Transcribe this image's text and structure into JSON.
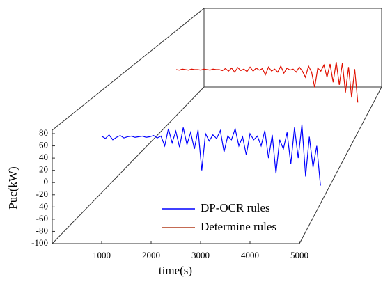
{
  "chart_data": {
    "type": "line",
    "xlabel": "time(s)",
    "ylabel": "Puc(kW)",
    "xlim": [
      0,
      5000
    ],
    "ylim": [
      -100,
      80
    ],
    "xticks": [
      1000,
      2000,
      3000,
      4000,
      5000
    ],
    "yticks": [
      -100,
      -80,
      -60,
      -40,
      -20,
      0,
      20,
      40,
      60,
      80
    ],
    "legend": "lower right",
    "x": [
      1000,
      1075,
      1150,
      1225,
      1300,
      1375,
      1450,
      1525,
      1600,
      1675,
      1750,
      1825,
      1900,
      1975,
      2050,
      2125,
      2200,
      2275,
      2350,
      2425,
      2500,
      2575,
      2650,
      2725,
      2800,
      2875,
      2950,
      3025,
      3100,
      3175,
      3250,
      3325,
      3400,
      3475,
      3550,
      3625,
      3700,
      3775,
      3850,
      3925,
      4000,
      4075,
      4150,
      4225,
      4300,
      4375,
      4450,
      4525,
      4600,
      4675,
      4750,
      4825,
      4900,
      4975,
      5050,
      5125,
      5200,
      5275,
      5350,
      5425
    ],
    "series": [
      {
        "name": "DP-OCR rules",
        "color": "#0000ff",
        "values": [
          76,
          72,
          78,
          70,
          74,
          77,
          73,
          75,
          76,
          74,
          75,
          76,
          74,
          75,
          77,
          73,
          76,
          60,
          88,
          65,
          84,
          58,
          90,
          62,
          82,
          55,
          86,
          20,
          80,
          68,
          78,
          72,
          85,
          50,
          76,
          70,
          88,
          60,
          75,
          45,
          80,
          70,
          76,
          60,
          85,
          40,
          78,
          15,
          70,
          55,
          82,
          30,
          90,
          40,
          95,
          10,
          75,
          25,
          60,
          -5
        ]
      },
      {
        "name": "Determine rules",
        "color": "#e01000",
        "legend_color": "#b03a1a",
        "values": [
          75,
          74,
          76,
          75,
          74,
          76,
          75,
          75,
          74,
          76,
          75,
          74,
          76,
          75,
          75,
          73,
          77,
          72,
          78,
          70,
          79,
          73,
          76,
          71,
          80,
          72,
          78,
          74,
          77,
          65,
          80,
          72,
          76,
          70,
          82,
          68,
          78,
          74,
          76,
          70,
          80,
          72,
          60,
          82,
          70,
          40,
          78,
          72,
          84,
          60,
          86,
          50,
          90,
          45,
          88,
          30,
          80,
          20,
          76,
          10
        ]
      }
    ]
  }
}
